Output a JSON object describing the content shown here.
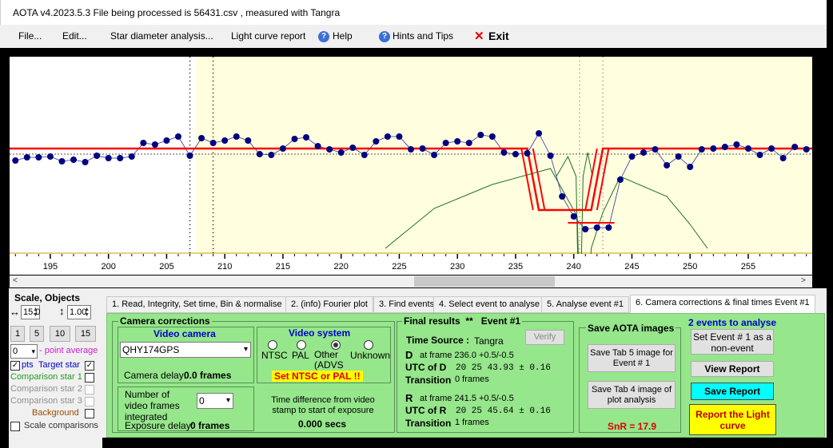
{
  "window": {
    "title": "AOTA v4.2023.5.3    File being processed is  56431.csv ,  measured with Tangra"
  },
  "menu": {
    "file": "File...",
    "edit": "Edit...",
    "star_diameter": "Star diameter analysis...",
    "light_curve_report": "Light curve report",
    "help": "Help",
    "hints": "Hints and Tips",
    "exit": "Exit",
    "help_icon": "question-icon",
    "exit_icon": "red-x-icon"
  },
  "chart_data": {
    "type": "line",
    "xlim": [
      191.5,
      260.5
    ],
    "x_ticks": [
      195,
      200,
      205,
      210,
      215,
      220,
      225,
      230,
      235,
      240,
      245,
      250,
      255
    ],
    "observed_points": [
      [
        192,
        0.9
      ],
      [
        193,
        0.94
      ],
      [
        194,
        0.94
      ],
      [
        195,
        0.95
      ],
      [
        196,
        0.89
      ],
      [
        197,
        0.91
      ],
      [
        198,
        0.88
      ],
      [
        199,
        0.96
      ],
      [
        200,
        0.93
      ],
      [
        201,
        0.93
      ],
      [
        202,
        0.95
      ],
      [
        203,
        1.12
      ],
      [
        204,
        1.1
      ],
      [
        205,
        1.15
      ],
      [
        206,
        1.2
      ],
      [
        207,
        0.96
      ],
      [
        208,
        1.18
      ],
      [
        209,
        1.12
      ],
      [
        210,
        1.15
      ],
      [
        211,
        1.2
      ],
      [
        212,
        1.15
      ],
      [
        213,
        0.98
      ],
      [
        214,
        0.97
      ],
      [
        215,
        1.05
      ],
      [
        216,
        1.17
      ],
      [
        217,
        1.19
      ],
      [
        218,
        1.08
      ],
      [
        219,
        1.04
      ],
      [
        220,
        1.0
      ],
      [
        221,
        1.06
      ],
      [
        222,
        0.97
      ],
      [
        223,
        1.14
      ],
      [
        224,
        1.2
      ],
      [
        225,
        1.2
      ],
      [
        226,
        1.04
      ],
      [
        227,
        1.05
      ],
      [
        228,
        0.97
      ],
      [
        229,
        1.12
      ],
      [
        230,
        1.14
      ],
      [
        231,
        1.12
      ],
      [
        232,
        1.22
      ],
      [
        233,
        1.2
      ],
      [
        234,
        1.0
      ],
      [
        235,
        0.98
      ],
      [
        236,
        0.99
      ],
      [
        237,
        1.24
      ],
      [
        238,
        0.96
      ],
      [
        239,
        0.45
      ],
      [
        240,
        0.2
      ],
      [
        241,
        0.04
      ],
      [
        242,
        0.06
      ],
      [
        243,
        0.06
      ],
      [
        244,
        0.66
      ],
      [
        245,
        0.95
      ],
      [
        246,
        1.0
      ],
      [
        247,
        1.04
      ],
      [
        248,
        0.84
      ],
      [
        249,
        0.95
      ],
      [
        250,
        0.82
      ],
      [
        251,
        1.04
      ],
      [
        252,
        1.05
      ],
      [
        253,
        1.07
      ],
      [
        254,
        1.1
      ],
      [
        255,
        1.05
      ],
      [
        256,
        0.97
      ],
      [
        257,
        1.05
      ],
      [
        258,
        0.93
      ],
      [
        259,
        1.07
      ],
      [
        260,
        1.04
      ]
    ],
    "model": [
      [
        191.5,
        1.05
      ],
      [
        236.0,
        1.05
      ],
      [
        237.0,
        0.28
      ],
      [
        241.5,
        0.28
      ],
      [
        242.5,
        1.05
      ],
      [
        260.5,
        1.05
      ]
    ],
    "d_frame": 236.0,
    "r_frame": 241.5,
    "snr": "SnR = 17.9",
    "colors": {
      "plot_bg": "#ffffe0",
      "plot_bg_left": "#ffffff",
      "points": "#000080",
      "model": "#ff0000",
      "chi_curve": "#207020"
    }
  },
  "left_panel": {
    "title": "Scale, Objects",
    "scale_value": "15.0",
    "vertical_scale": "1.00",
    "scale_buttons": [
      "1",
      "5",
      "10",
      "15"
    ],
    "point_average_value": "0",
    "point_average_label": "- point average",
    "pts_label": "pts",
    "target_star_label": "Target star",
    "comparison_1": "Comparison star 1",
    "comparison_2": "Comparison star 2",
    "comparison_3": "Comparison star 3",
    "background": "Background",
    "scale_comparisons": "Scale comparisons",
    "arrows_icon": "horizontal-arrows-icon",
    "colors": {
      "target": "#0000cc",
      "comp1": "#20a020",
      "comp2": "#909090",
      "comp3": "#909090",
      "background": "#9a4b00"
    }
  },
  "tabs": [
    "1. Read, Integrity, Set time, Bin & normalise",
    "2. (info)  Fourier plot",
    "3. Find events",
    "4. Select event to analyse",
    "5. Analyse event #1",
    "6. Camera corrections & final times Event #1"
  ],
  "camera": {
    "group_title": "Camera corrections",
    "video_camera_title": "Video camera",
    "camera_model": "QHY174GPS",
    "camera_delay_label": "Camera delay:",
    "camera_delay_value": "0.0 frames",
    "video_system_title": "Video system",
    "ntsc": "NTSC",
    "pal": "PAL",
    "other": "Other (ADVS",
    "unknown": "Unknown",
    "warning": "Set NTSC or PAL !!",
    "frames_integrated_label": "Number of video frames integrated",
    "frames_integrated_value": "0",
    "exposure_delay_label": "Exposure delay:",
    "exposure_delay_value": "0 frames",
    "time_diff_label": "Time difference from video stamp to start of exposure",
    "time_diff_value": "0.000 secs"
  },
  "results": {
    "title": "Final results",
    "stars": "**",
    "event": "Event #1",
    "time_source_label": "Time Source :",
    "time_source_value": "Tangra",
    "verify": "Verify",
    "d_label": "D",
    "d_frame": "at frame 236.0  +0.5/-0.5",
    "utc_d_label": "UTC of D",
    "utc_d_value": "20 25 43.93  ± 0.16",
    "transition_d_label": "Transition",
    "transition_d_value": "0 frames",
    "r_label": "R",
    "r_frame": "at frame 241.5  +0.5/-0.5",
    "utc_r_label": "UTC of R",
    "utc_r_value": "20 25 45.64  ± 0.16",
    "transition_r_label": "Transition",
    "transition_r_value": "1 frames"
  },
  "save": {
    "title": "Save AOTA images",
    "tab5": "Save Tab 5 image for Event # 1",
    "tab4": "Save Tab 4 image of plot analysis",
    "snr": "SnR = 17.9"
  },
  "events": {
    "title": "2 events to analyse",
    "set_non_event": "Set Event # 1 as a non-event",
    "view_report": "View Report",
    "save_report": "Save Report",
    "report_light_curve": "Report the Light curve"
  }
}
